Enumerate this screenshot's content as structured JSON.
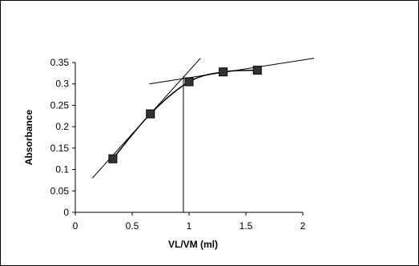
{
  "chart_data": {
    "type": "scatter",
    "title": "",
    "xlabel": "VL/VM (ml)",
    "ylabel": "Absorbance",
    "xlim": [
      0,
      2
    ],
    "ylim": [
      0,
      0.35
    ],
    "x_ticks": [
      "0",
      "0.5",
      "1",
      "1.5",
      "2"
    ],
    "y_ticks": [
      "0",
      "0.05",
      "0.1",
      "0.15",
      "0.2",
      "0.25",
      "0.3",
      "0.35"
    ],
    "grid": false,
    "legend": "none",
    "series": [
      {
        "x": [
          0.33,
          0.66,
          1.0,
          1.3,
          1.6
        ],
        "y": [
          0.125,
          0.23,
          0.305,
          0.328,
          0.332
        ]
      }
    ],
    "tangent_lines": [
      {
        "from": [
          0.15,
          0.08
        ],
        "to": [
          1.1,
          0.36
        ]
      },
      {
        "from": [
          0.65,
          0.3
        ],
        "to": [
          2.1,
          0.36
        ]
      }
    ],
    "vertical_marker_x": 0.95,
    "colors": {
      "marker": "#333333",
      "line": "#000000"
    }
  }
}
